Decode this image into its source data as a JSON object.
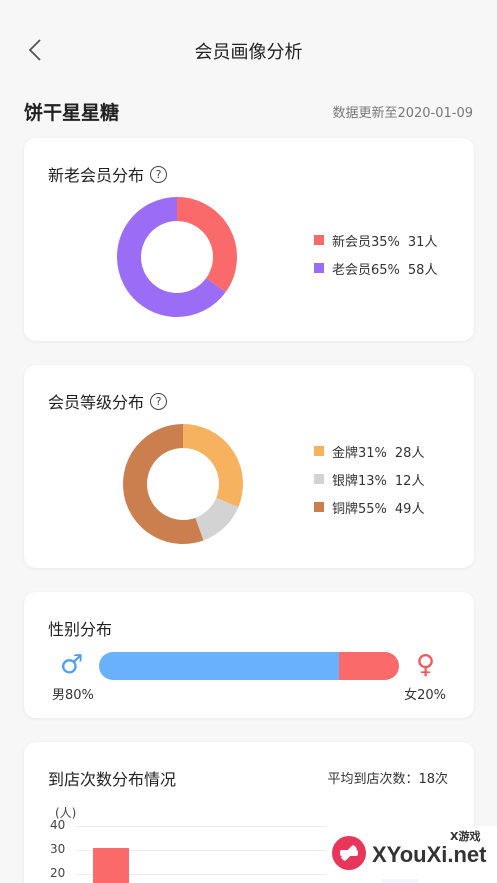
{
  "header": {
    "title": "会员画像分析"
  },
  "store": {
    "name": "饼干星星糖",
    "update_text": "数据更新至2020-01-09"
  },
  "member_distribution": {
    "title": "新老会员分布",
    "help_icon": "question-icon",
    "chart_data": {
      "type": "pie",
      "categories": [
        "新会员",
        "老会员"
      ],
      "values": [
        35,
        65
      ],
      "counts": [
        "31人",
        "58人"
      ],
      "percent_labels": [
        "35%",
        "65%"
      ],
      "colors": [
        "#fb6a6a",
        "#9b6cf6"
      ]
    }
  },
  "level_distribution": {
    "title": "会员等级分布",
    "help_icon": "question-icon",
    "chart_data": {
      "type": "pie",
      "categories": [
        "金牌",
        "银牌",
        "铜牌"
      ],
      "values": [
        31,
        13,
        55
      ],
      "counts": [
        "28人",
        "12人",
        "49人"
      ],
      "percent_labels": [
        "31%",
        "13%",
        "55%"
      ],
      "colors": [
        "#f6b25e",
        "#d3d3d3",
        "#cb7f4f"
      ]
    }
  },
  "gender_distribution": {
    "title": "性别分布",
    "male_label": "男80%",
    "female_label": "女20%",
    "male_fraction": 0.8,
    "female_fraction": 0.2,
    "male_icon": "male-symbol-icon",
    "female_icon": "female-symbol-icon",
    "colors": {
      "male": "#6ab1fb",
      "female": "#fb6a6a"
    }
  },
  "visit_distribution": {
    "title": "到店次数分布情况",
    "avg_label": "平均到店次数：18次",
    "chart_data": {
      "type": "bar",
      "ylabel": "(人)",
      "yticks": [
        "40",
        "30",
        "20"
      ],
      "ylim": [
        0,
        40
      ],
      "series": [
        {
          "values": [
            31
          ],
          "color": "#fb6a6a"
        },
        {
          "values": [
            18
          ],
          "color": "#9b6cf6"
        }
      ]
    }
  },
  "watermark": {
    "text": "XYouXi.net",
    "small": "X游戏"
  }
}
